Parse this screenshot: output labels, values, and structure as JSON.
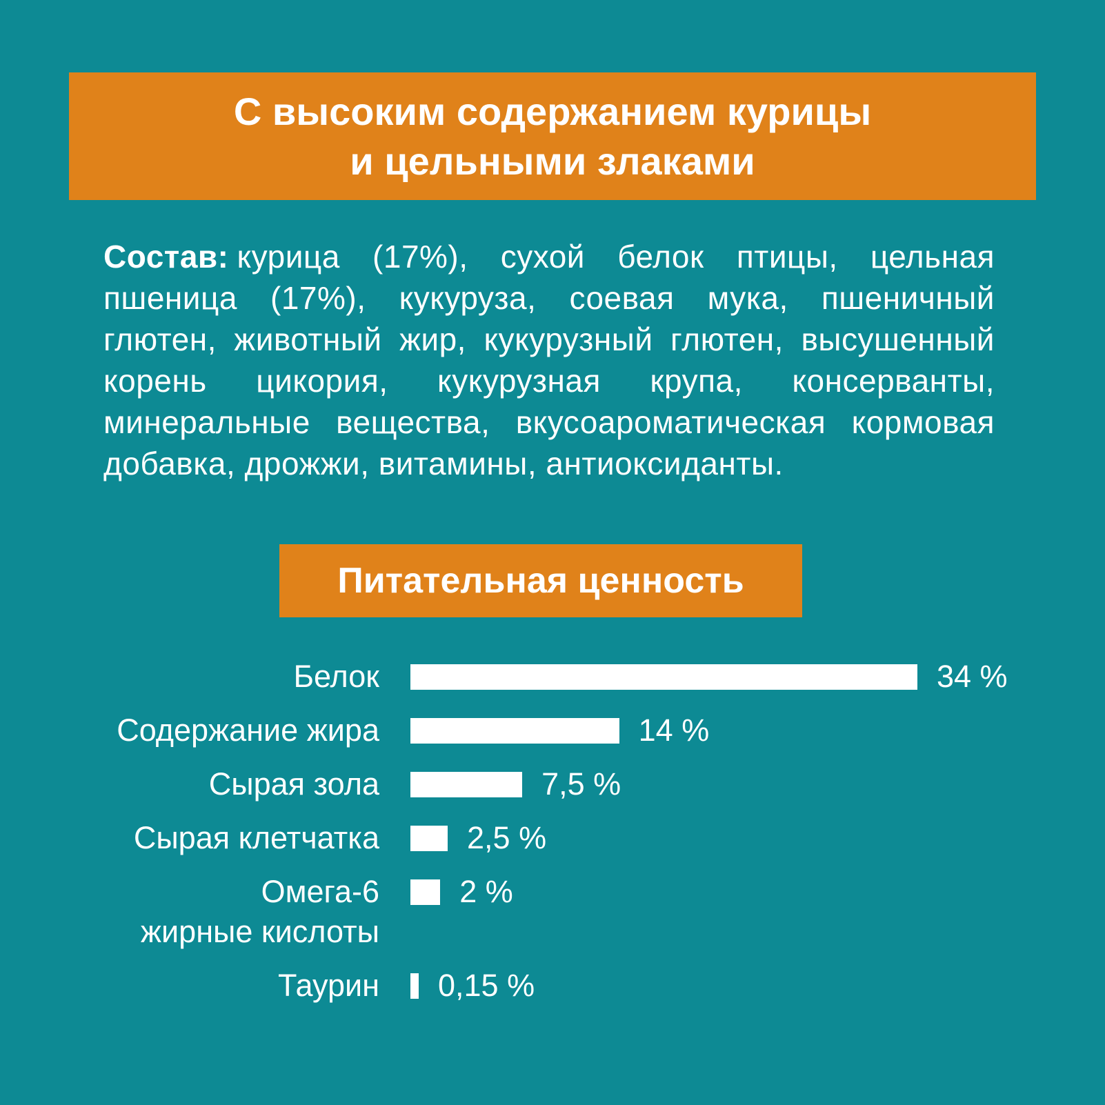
{
  "page": {
    "background_color": "#0d8a94",
    "accent_color": "#e0821a",
    "text_color": "#ffffff"
  },
  "header_banner": {
    "line1": "С высоким содержанием курицы",
    "line2": "и цельными злаками"
  },
  "composition": {
    "label": "Состав:",
    "text": "курица (17%), сухой белок птицы, цельная пшеница (17%), кукуруза, соевая мука, пшеничный глютен, животный жир, кукурузный глютен, высушенный корень цикория, кукурузная крупа, консерванты, минеральные вещества, вкусоароматическая кормовая добавка, дрожжи, витамины, антиоксиданты."
  },
  "nutrition_banner": {
    "title": "Питательная ценность"
  },
  "chart_data": {
    "type": "bar",
    "orientation": "horizontal",
    "title": "Питательная ценность",
    "categories": [
      "Белок",
      "Содержание жира",
      "Сырая зола",
      "Сырая клетчатка",
      "Омега-6 жирные кислоты",
      "Таурин"
    ],
    "label_lines": [
      [
        "Белок"
      ],
      [
        "Содержание жира"
      ],
      [
        "Сырая зола"
      ],
      [
        "Сырая клетчатка"
      ],
      [
        "Омега-6",
        "жирные кислоты"
      ],
      [
        "Таурин"
      ]
    ],
    "values": [
      34,
      14,
      7.5,
      2.5,
      2,
      0.15
    ],
    "value_labels": [
      "34 %",
      "14 %",
      "7,5 %",
      "2,5 %",
      "2 %",
      "0,15 %"
    ],
    "unit": "%",
    "xlim": [
      0,
      34
    ],
    "bar_color": "#ffffff",
    "grid": false,
    "legend": false
  }
}
